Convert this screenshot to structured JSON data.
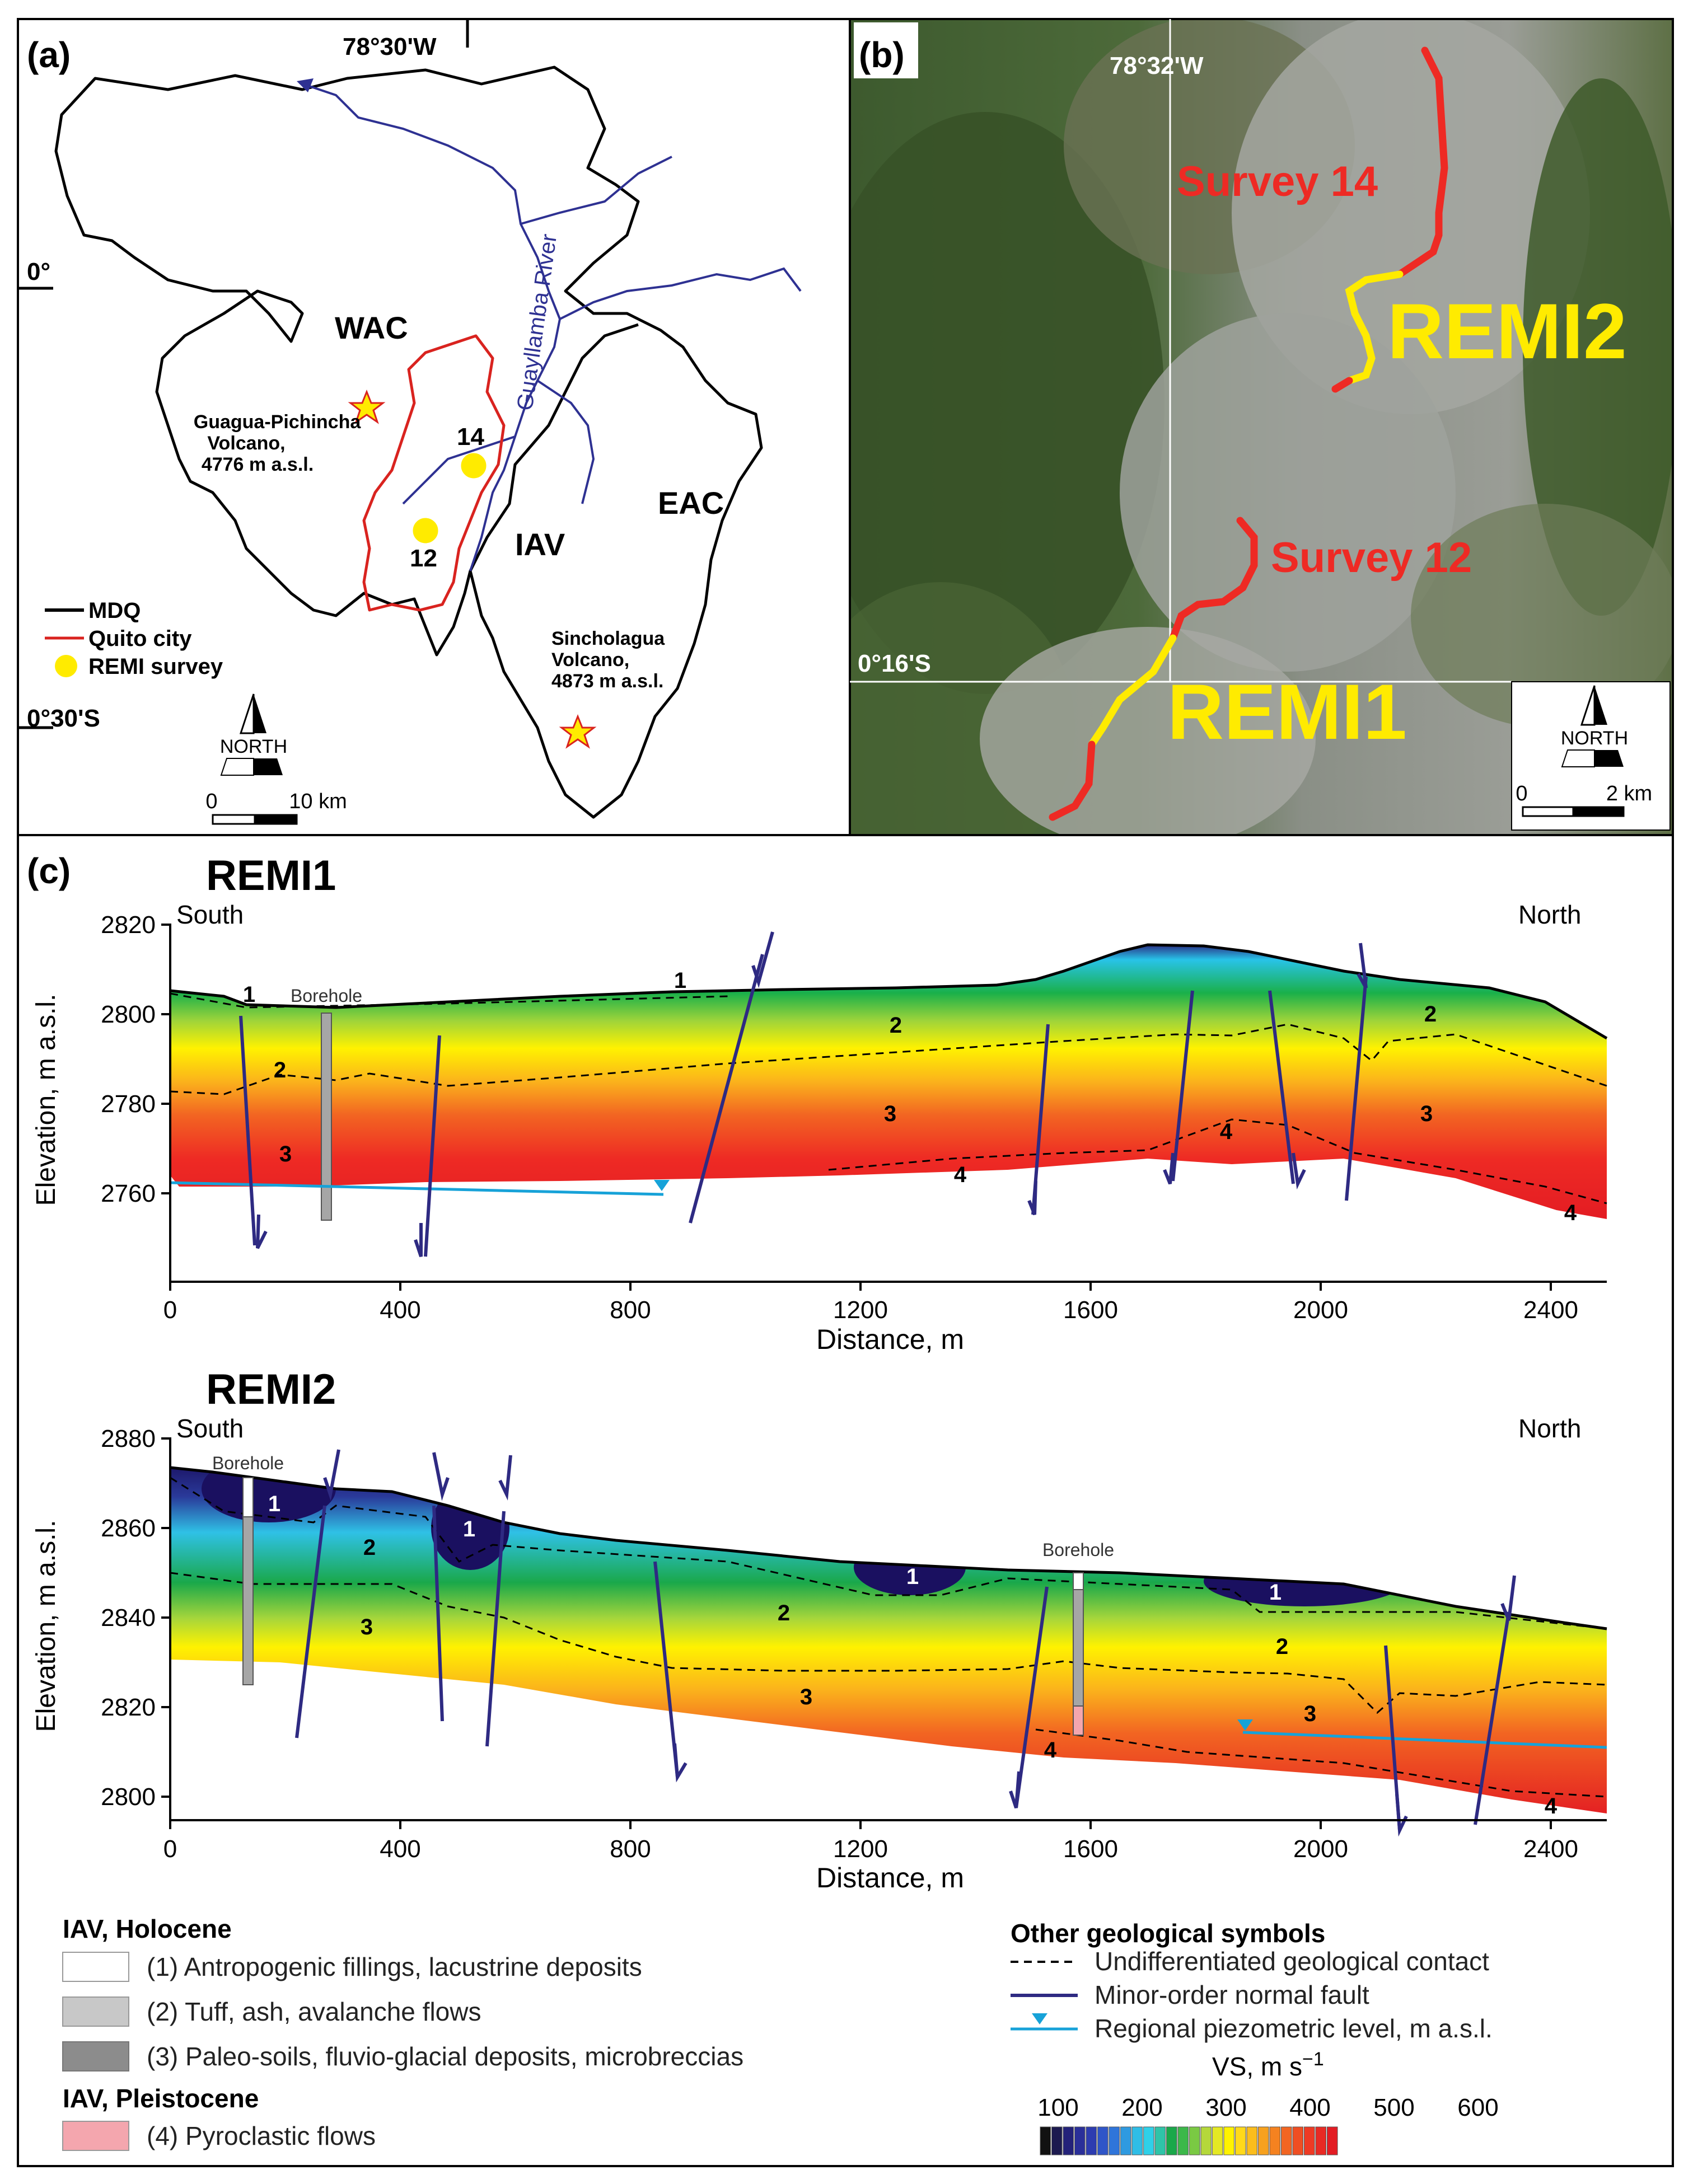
{
  "panel_a": {
    "label": "(a)",
    "lon_label": "78°30'W",
    "lat_0": "0°",
    "lat_30s": "0°30'S",
    "wac": "WAC",
    "eac": "EAC",
    "iav": "IAV",
    "river": "Guayllamba River",
    "guagua_lines": [
      "Guagua-Pichincha",
      "Volcano,",
      "4776 m a.s.l."
    ],
    "sincholagua_lines": [
      "Sincholagua",
      "Volcano,",
      "4873 m a.s.l."
    ],
    "survey_14": "14",
    "survey_12": "12",
    "legend": {
      "mdq": "MDQ",
      "quito": "Quito city",
      "remi": "REMI survey"
    },
    "north": "NORTH",
    "scale_0": "0",
    "scale_10": "10 km",
    "colors": {
      "mdq": "#000000",
      "quito": "#d9231f",
      "river": "#2e3192",
      "survey": "#ffeb00",
      "volcano": "#ffeb00"
    }
  },
  "panel_b": {
    "label": "(b)",
    "lon_label": "78°32'W",
    "lat_label": "0°16'S",
    "survey14": "Survey 14",
    "survey12": "Survey 12",
    "remi2": "REMI2",
    "remi1": "REMI1",
    "north": "NORTH",
    "scale_0": "0",
    "scale_2": "2 km",
    "colors": {
      "survey": "#ee2a24",
      "remi": "#ffeb00"
    }
  },
  "panel_c": {
    "label": "(c)",
    "remi1": {
      "title": "REMI1",
      "south": "South",
      "north": "North",
      "borehole": "Borehole",
      "ylabel": "Elevation, m a.s.l.",
      "xlabel": "Distance, m",
      "yticks": [
        "2820",
        "2800",
        "2780",
        "2760"
      ],
      "xticks": [
        "0",
        "400",
        "800",
        "1200",
        "1600",
        "2000",
        "2400"
      ],
      "unit_labels": [
        "1",
        "1",
        "2",
        "2",
        "2",
        "3",
        "3",
        "3",
        "4",
        "4",
        "4"
      ],
      "xlim": [
        0,
        2500
      ],
      "ylim": [
        2740,
        2825
      ]
    },
    "remi2": {
      "title": "REMI2",
      "south": "South",
      "north": "North",
      "borehole": "Borehole",
      "ylabel": "Elevation, m a.s.l.",
      "xlabel": "Distance, m",
      "yticks": [
        "2880",
        "2860",
        "2840",
        "2820",
        "2800"
      ],
      "xticks": [
        "0",
        "400",
        "800",
        "1200",
        "1600",
        "2000",
        "2400"
      ],
      "unit_labels": [
        "1",
        "1",
        "1",
        "1",
        "2",
        "2",
        "2",
        "3",
        "3",
        "3",
        "4",
        "4"
      ],
      "xlim": [
        0,
        2500
      ],
      "ylim": [
        2790,
        2882
      ]
    }
  },
  "legend": {
    "holocene_title": "IAV, Holocene",
    "items_holocene": [
      "(1) Antropogenic fillings, lacustrine deposits",
      "(2) Tuff, ash, avalanche flows",
      "(3) Paleo-soils, fluvio-glacial deposits, microbreccias"
    ],
    "pleistocene_title": "IAV, Pleistocene",
    "item_pleistocene": "(4) Pyroclastic flows",
    "other_title": "Other geological symbols",
    "other_items": [
      "Undifferentiated geological contact",
      "Minor-order normal fault",
      "Regional piezometric level, m a.s.l."
    ],
    "vs_label": "VS, m s",
    "vs_exp": "−1",
    "vs_ticks": [
      "100",
      "200",
      "300",
      "400",
      "500",
      "600"
    ],
    "swatch_colors": [
      "#ffffff",
      "#c8c8c8",
      "#8c8c8c",
      "#f4a6ae"
    ]
  }
}
